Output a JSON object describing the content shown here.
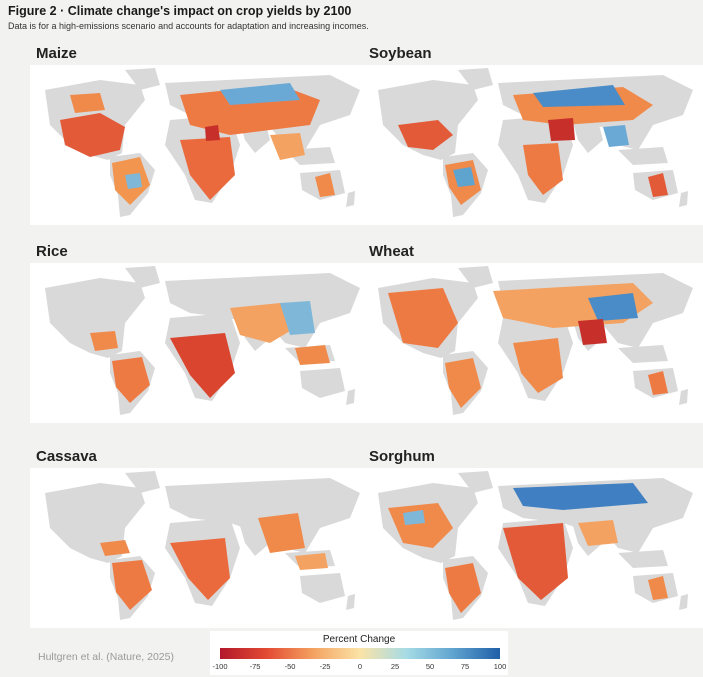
{
  "figure": {
    "title": "Figure 2 · Climate change's impact on crop yields by 2100",
    "subtitle": "Data is for a high-emissions scenario and accounts for adaptation and increasing incomes."
  },
  "panels": [
    {
      "crop": "Maize"
    },
    {
      "crop": "Soybean"
    },
    {
      "crop": "Rice"
    },
    {
      "crop": "Wheat"
    },
    {
      "crop": "Cassava"
    },
    {
      "crop": "Sorghum"
    }
  ],
  "source": "Hultgren et al. (Nature, 2025)",
  "legend": {
    "title": "Percent Change",
    "ticks": [
      "-100",
      "-75",
      "-50",
      "-25",
      "0",
      "25",
      "50",
      "75",
      "100"
    ],
    "colors": {
      "strong_loss": "#b2182b",
      "loss": "#e34a33",
      "mild_loss": "#f4a261",
      "neutral": "#fbe3a6",
      "mild_gain": "#a6dbe6",
      "gain": "#5fa3cf",
      "strong_gain": "#1f5fa8",
      "no_data": "#d9d9d9"
    }
  }
}
